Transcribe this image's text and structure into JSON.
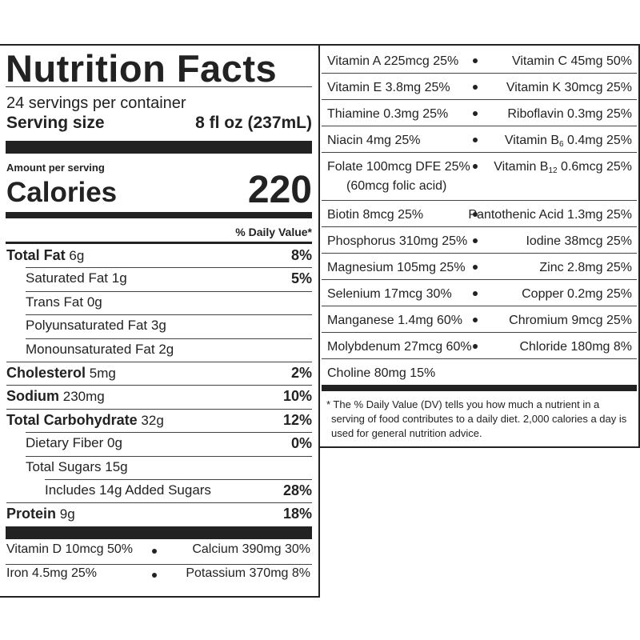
{
  "header": {
    "title": "Nutrition Facts",
    "servings": "24 servings per container",
    "serving_size_label": "Serving size",
    "serving_size": "8 fl oz (237mL)"
  },
  "calories": {
    "amount_label": "Amount per serving",
    "label": "Calories",
    "value": 220
  },
  "dv_header": "% Daily Value*",
  "nutrients": [
    {
      "name": "Total Fat",
      "amount": "6g",
      "dv": "8%",
      "bold": true,
      "indent": 0
    },
    {
      "name": "Saturated Fat",
      "amount": "1g",
      "dv": "5%",
      "bold": false,
      "indent": 1
    },
    {
      "name": "Trans Fat",
      "amount": "0g",
      "bold": false,
      "indent": 1
    },
    {
      "name": "Polyunsaturated Fat",
      "amount": "3g",
      "bold": false,
      "indent": 1
    },
    {
      "name": "Monounsaturated Fat",
      "amount": "2g",
      "bold": false,
      "indent": 1
    },
    {
      "name": "Cholesterol",
      "amount": "5mg",
      "dv": "2%",
      "bold": true,
      "indent": 0
    },
    {
      "name": "Sodium",
      "amount": "230mg",
      "dv": "10%",
      "bold": true,
      "indent": 0
    },
    {
      "name": "Total Carbohydrate",
      "amount": "32g",
      "dv": "12%",
      "bold": true,
      "indent": 0
    },
    {
      "name": "Dietary Fiber",
      "amount": "0g",
      "dv": "0%",
      "bold": false,
      "indent": 1
    },
    {
      "name": "Total Sugars",
      "amount": "15g",
      "bold": false,
      "indent": 1
    },
    {
      "name": "Includes 14g Added Sugars",
      "dv": "28%",
      "bold": false,
      "indent": 2
    },
    {
      "name": "Protein",
      "amount": "9g",
      "dv": "18%",
      "bold": true,
      "indent": 0
    }
  ],
  "bottom_vitamins": [
    {
      "left": {
        "name": "Vitamin D",
        "amount": "10mcg",
        "dv": "50%"
      },
      "right": {
        "name": "Calcium",
        "amount": "390mg",
        "dv": "30%"
      }
    },
    {
      "left": {
        "name": "Iron",
        "amount": "4.5mg",
        "dv": "25%"
      },
      "right": {
        "name": "Potassium",
        "amount": "370mg",
        "dv": "8%"
      }
    }
  ],
  "right_panel": {
    "rows": [
      {
        "left": {
          "name": "Vitamin A",
          "amount": "225mcg",
          "dv": "25%"
        },
        "right": {
          "name": "Vitamin C",
          "amount": "45mg",
          "dv": "50%"
        }
      },
      {
        "left": {
          "name": "Vitamin E",
          "amount": "3.8mg",
          "dv": "25%"
        },
        "right": {
          "name": "Vitamin K",
          "amount": "30mcg",
          "dv": "25%"
        }
      },
      {
        "left": {
          "name": "Thiamine",
          "amount": "0.3mg",
          "dv": "25%"
        },
        "right": {
          "name": "Riboflavin",
          "amount": "0.3mg",
          "dv": "25%"
        }
      },
      {
        "left": {
          "name": "Niacin",
          "amount": "4mg",
          "dv": "25%"
        },
        "right": {
          "name": "Vitamin B",
          "sub": "6",
          "amount": "0.4mg",
          "dv": "25%"
        }
      },
      {
        "left": {
          "name": "Folate",
          "amount": "100mcg DFE",
          "dv": "25%",
          "note": "(60mcg folic acid)"
        },
        "right": {
          "name": "Vitamin B",
          "sub": "12",
          "amount": "0.6mcg",
          "dv": "25%"
        }
      },
      {
        "left": {
          "name": "Biotin",
          "amount": "8mcg",
          "dv": "25%"
        },
        "right": {
          "name": "Pantothenic Acid",
          "amount": "1.3mg",
          "dv": "25%"
        }
      },
      {
        "left": {
          "name": "Phosphorus",
          "amount": "310mg",
          "dv": "25%"
        },
        "right": {
          "name": "Iodine",
          "amount": "38mcg",
          "dv": "25%"
        }
      },
      {
        "left": {
          "name": "Magnesium",
          "amount": "105mg",
          "dv": "25%"
        },
        "right": {
          "name": "Zinc",
          "amount": "2.8mg",
          "dv": "25%"
        }
      },
      {
        "left": {
          "name": "Selenium",
          "amount": "17mcg",
          "dv": "30%"
        },
        "right": {
          "name": "Copper",
          "amount": "0.2mg",
          "dv": "25%"
        }
      },
      {
        "left": {
          "name": "Manganese",
          "amount": "1.4mg",
          "dv": "60%"
        },
        "right": {
          "name": "Chromium",
          "amount": "9mcg",
          "dv": "25%"
        }
      },
      {
        "left": {
          "name": "Molybdenum",
          "amount": "27mcg",
          "dv": "60%"
        },
        "right": {
          "name": "Chloride",
          "amount": "180mg",
          "dv": "8%"
        }
      },
      {
        "left": {
          "name": "Choline",
          "amount": "80mg",
          "dv": "15%"
        }
      }
    ],
    "footnote": "* The % Daily Value (DV) tells you how much a nutrient in a serving of food contributes to a daily diet. 2,000 calories a day is used for general nutrition advice."
  }
}
